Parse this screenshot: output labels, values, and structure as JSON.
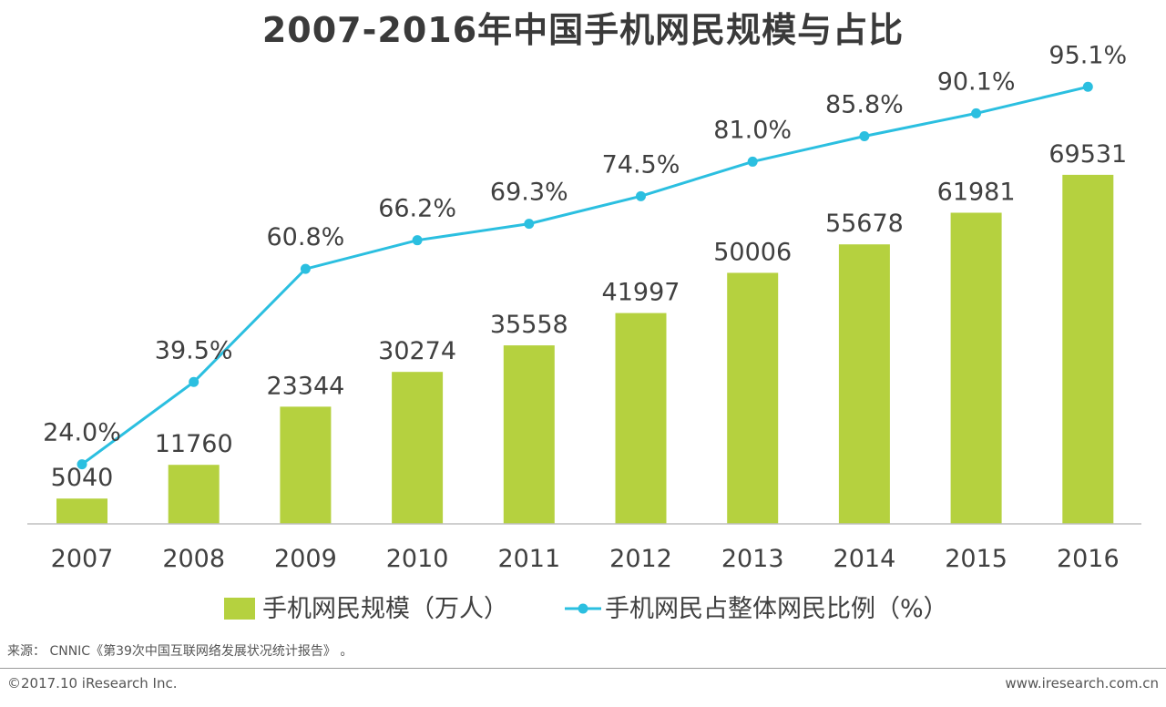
{
  "chart_data": {
    "type": "bar+line",
    "title": "2007-2016年中国手机网民规模与占比",
    "categories": [
      "2007",
      "2008",
      "2009",
      "2010",
      "2011",
      "2012",
      "2013",
      "2014",
      "2015",
      "2016"
    ],
    "series": [
      {
        "name": "手机网民规模（万人）",
        "type": "bar",
        "color": "#b5d13f",
        "values": [
          5040,
          11760,
          23344,
          30274,
          35558,
          41997,
          50006,
          55678,
          61981,
          69531
        ],
        "labels": [
          "5040",
          "11760",
          "23344",
          "30274",
          "35558",
          "41997",
          "50006",
          "55678",
          "61981",
          "69531"
        ]
      },
      {
        "name": "手机网民占整体网民比例（%）",
        "type": "line",
        "color": "#2bbfe0",
        "values": [
          24.0,
          39.5,
          60.8,
          66.2,
          69.3,
          74.5,
          81.0,
          85.8,
          90.1,
          95.1
        ],
        "labels": [
          "24.0%",
          "39.5%",
          "60.8%",
          "66.2%",
          "69.3%",
          "74.5%",
          "81.0%",
          "85.8%",
          "90.1%",
          "95.1%"
        ]
      }
    ],
    "xlabel": "",
    "ylabel": "",
    "grid": false,
    "legend": "bottom-center"
  },
  "footer": {
    "source": "来源： CNNIC《第39次中国互联网络发展状况统计报告》 。",
    "copyright": "©2017.10 iResearch Inc.",
    "site": "www.iresearch.com.cn"
  }
}
